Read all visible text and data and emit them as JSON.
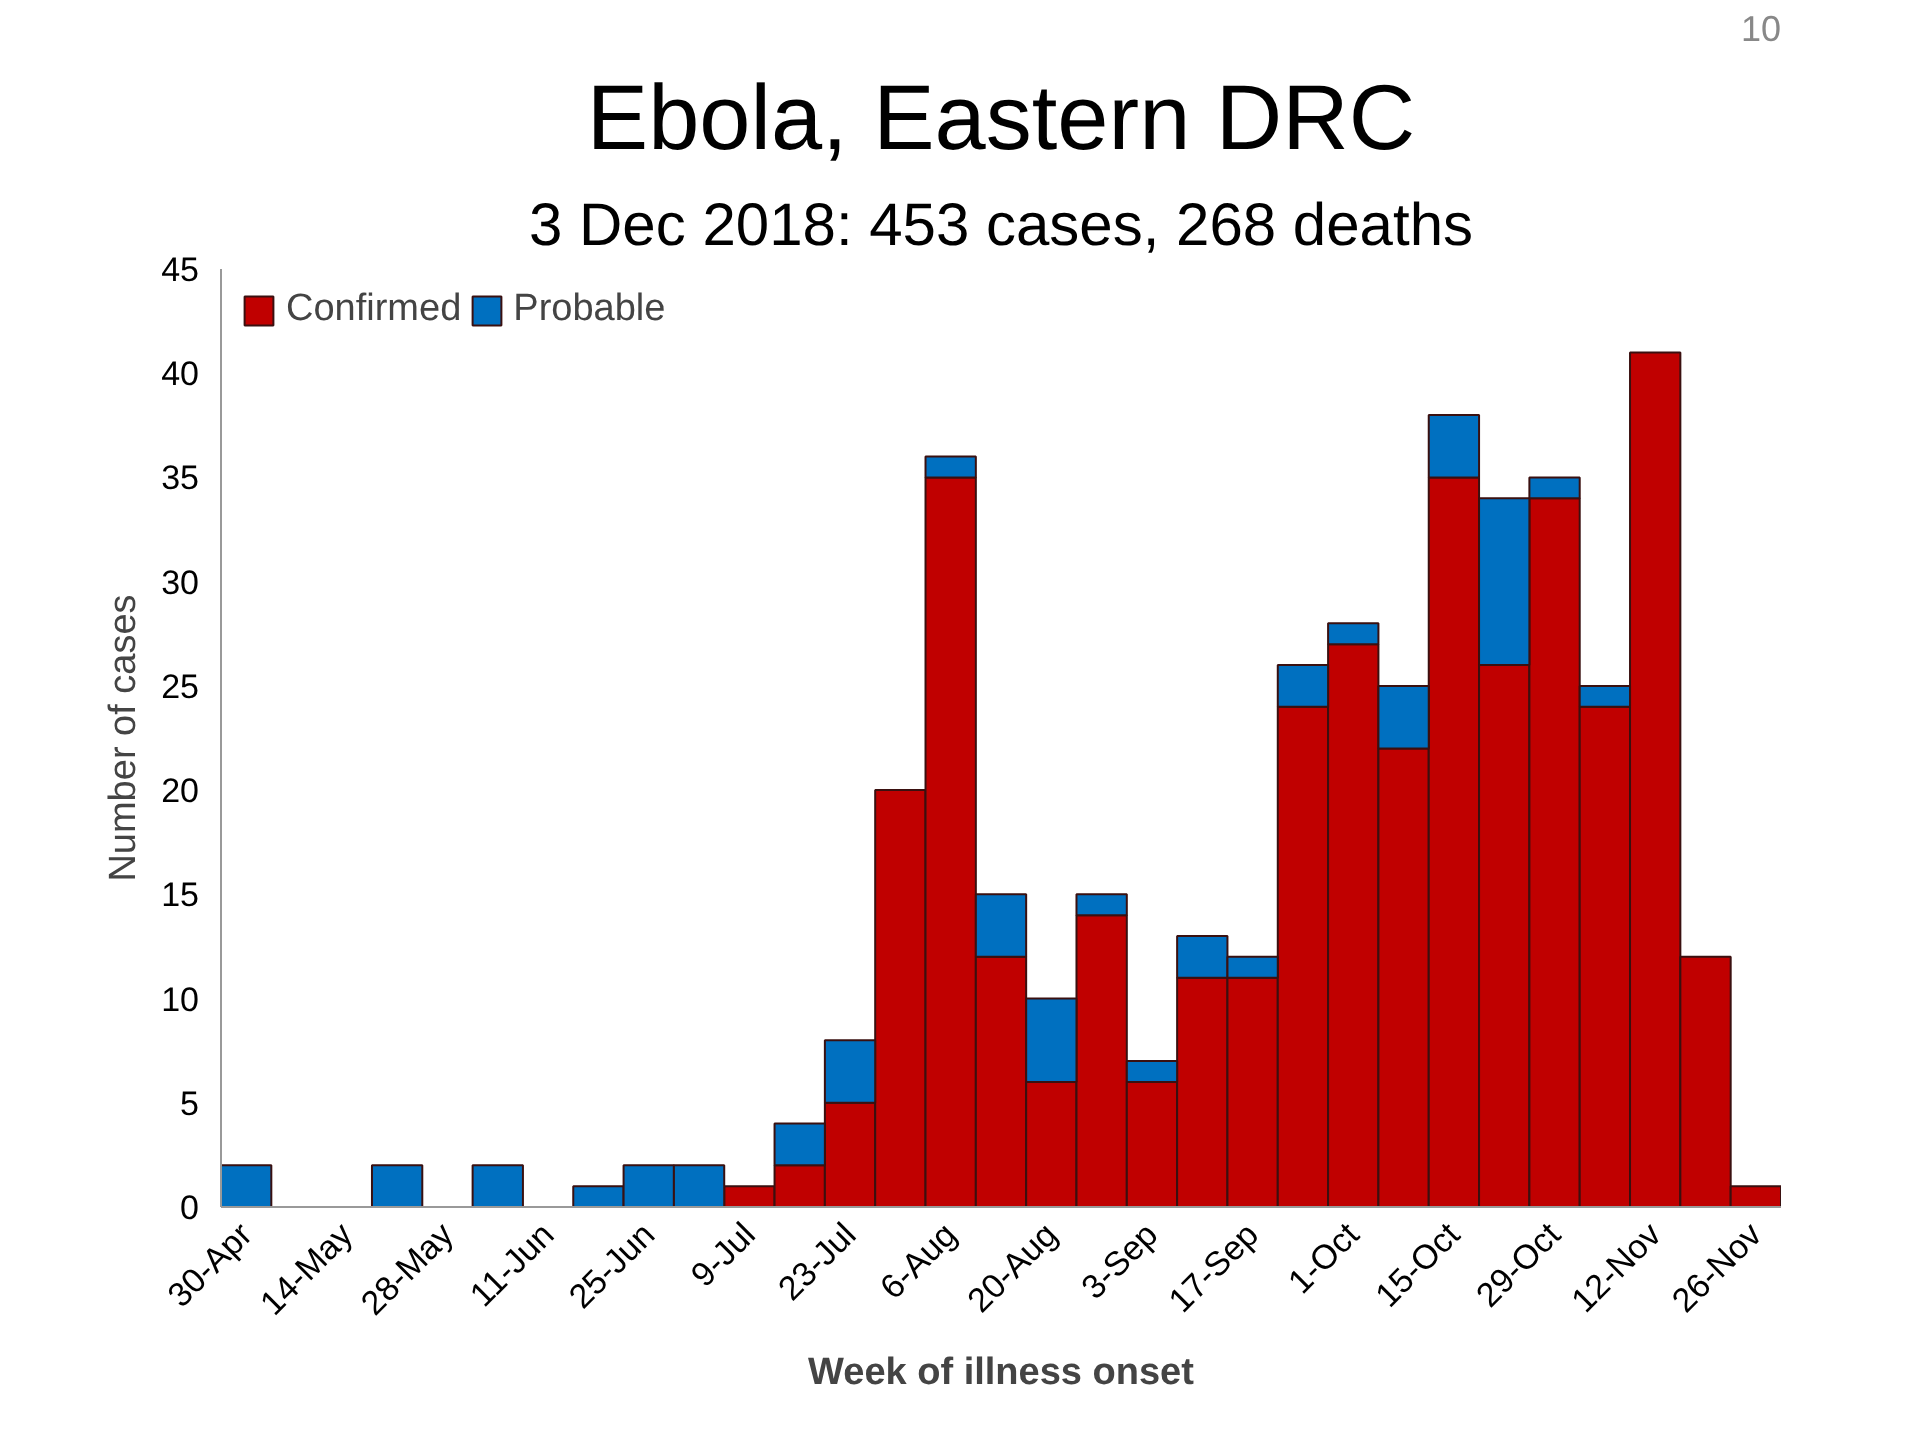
{
  "chart_data": {
    "type": "bar",
    "title": "Ebola, Eastern DRC",
    "subtitle": "3 Dec 2018: 453 cases, 268 deaths",
    "xlabel": "Week of illness onset",
    "ylabel": "Number of cases",
    "categories": [
      "30-Apr",
      null,
      "14-May",
      null,
      "28-May",
      null,
      "11-Jun",
      null,
      "25-Jun",
      null,
      "9-Jul",
      null,
      "23-Jul",
      null,
      "6-Aug",
      null,
      "20-Aug",
      null,
      "3-Sep",
      null,
      "17-Sep",
      null,
      "1-Oct",
      null,
      "15-Oct",
      null,
      "29-Oct",
      null,
      "12-Nov",
      null,
      "26-Nov"
    ],
    "stacked": true,
    "ylim": [
      0,
      45
    ],
    "yticks": [
      0,
      5,
      10,
      15,
      20,
      25,
      30,
      35,
      40,
      45
    ],
    "grid": false,
    "legend": "top left",
    "series": [
      {
        "name": "Confirmed",
        "color": "#c00000",
        "values": [
          0,
          0,
          0,
          0,
          0,
          0,
          0,
          0,
          0,
          0,
          1,
          2,
          5,
          20,
          35,
          12,
          6,
          14,
          6,
          11,
          11,
          24,
          27,
          22,
          35,
          26,
          34,
          24,
          41,
          12,
          1
        ]
      },
      {
        "name": "Probable",
        "color": "#0070c0",
        "values": [
          2,
          0,
          0,
          2,
          0,
          2,
          0,
          1,
          2,
          2,
          0,
          2,
          3,
          0,
          1,
          3,
          4,
          1,
          1,
          2,
          1,
          2,
          1,
          3,
          3,
          8,
          1,
          1,
          0,
          0,
          0
        ]
      }
    ],
    "annotations": [
      "10"
    ]
  }
}
